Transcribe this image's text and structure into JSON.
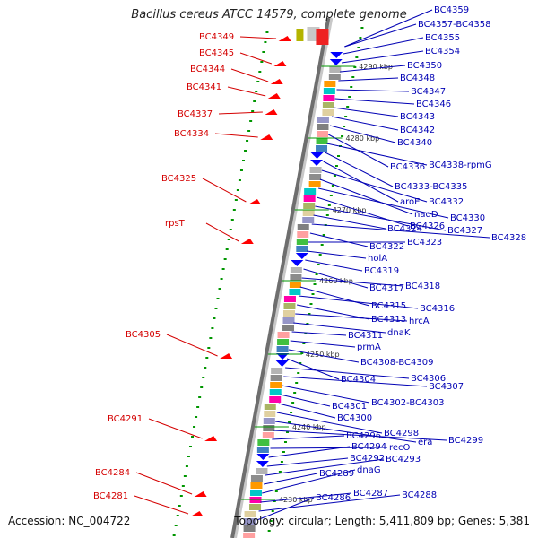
{
  "title": "Bacillus cereus ATCC 14579, complete genome",
  "accession": "Accession: NC_004722",
  "topology": "Topology: circular; Length: 5,411,809 bp; Genes: 5,381",
  "colors": {
    "reverse_label": "#d40000",
    "forward_label": "#0000b4",
    "backbone_dark": "#6e6e6e",
    "backbone_light": "#c8c8c8",
    "reverse_gene": "#ff0000",
    "forward_gene": "#0000ff",
    "tick": "#009600"
  },
  "kbp_ticks": [
    "4290 kbp",
    "4280 kbp",
    "4270 kbp",
    "4260 kbp",
    "4250 kbp",
    "4240 kbp",
    "4230 kbp"
  ],
  "reverse_labels": [
    "BC4349",
    "BC4345",
    "BC4344",
    "BC4341",
    "BC4337",
    "BC4334",
    "BC4325",
    "rpsT",
    "BC4305",
    "BC4291",
    "BC4284",
    "BC4281"
  ],
  "forward_labels": [
    "BC4359",
    "BC4357-BC4358",
    "BC4355",
    "BC4354",
    "BC4350",
    "BC4348",
    "BC4347",
    "BC4346",
    "BC4343",
    "BC4342",
    "BC4340",
    "BC4336",
    "BC4338-rpmG",
    "BC4333-BC4335",
    "aroE",
    "BC4332",
    "nadD",
    "BC4330",
    "BC4326",
    "BC4327",
    "BC4324",
    "BC4328",
    "BC4322",
    "BC4323",
    "holA",
    "BC4319",
    "BC4317",
    "BC4318",
    "BC4315",
    "BC4316",
    "BC4313",
    "hrcA",
    "dnaK",
    "BC4311",
    "prmA",
    "BC4308-BC4309",
    "BC4304",
    "BC4306",
    "BC4307",
    "BC4302-BC4303",
    "BC4301",
    "BC4300",
    "BC4298",
    "era",
    "BC4299",
    "BC4296",
    "recO",
    "BC4294",
    "BC4292",
    "BC4293",
    "BC4289",
    "dnaG",
    "BC4287",
    "BC4288",
    "BC4286"
  ]
}
